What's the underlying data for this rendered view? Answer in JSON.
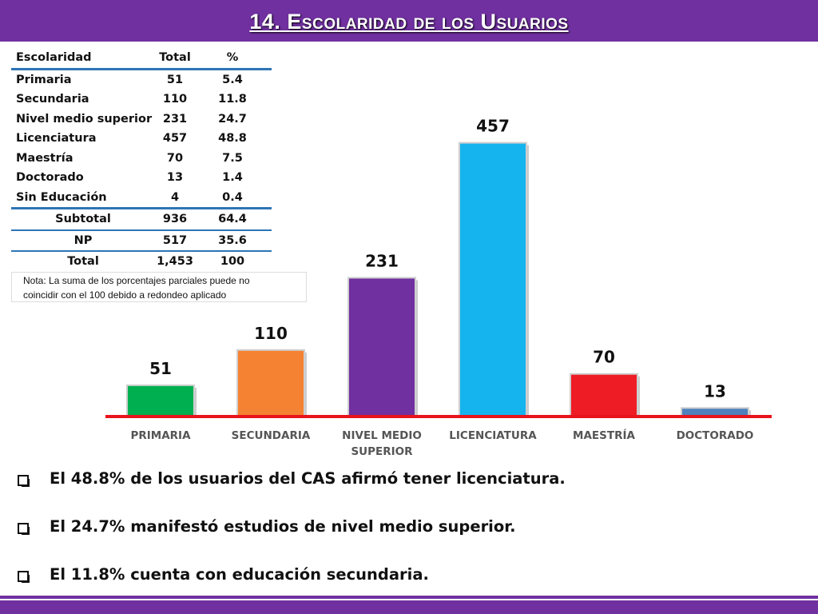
{
  "title": "14. Escolaridad de los Usuarios",
  "table": {
    "headers": [
      "Escolaridad",
      "Total",
      "%"
    ],
    "rows": [
      [
        "Primaria",
        "51",
        "5.4"
      ],
      [
        "Secundaria",
        "110",
        "11.8"
      ],
      [
        "Nivel medio superior",
        "231",
        "24.7"
      ],
      [
        "Licenciatura",
        "457",
        "48.8"
      ],
      [
        "Maestría",
        "70",
        "7.5"
      ],
      [
        "Doctorado",
        "13",
        "1.4"
      ],
      [
        "Sin Educación",
        "4",
        "0.4"
      ]
    ],
    "subtotal": [
      "Subtotal",
      "936",
      "64.4"
    ],
    "np": [
      "NP",
      "517",
      "35.6"
    ],
    "total": [
      "Total",
      "1,453",
      "100"
    ]
  },
  "note": {
    "line1": "Nota: La suma de los porcentajes parciales puede no",
    "line2": "coincidir con el 100 debido a redondeo aplicado"
  },
  "chart_data": {
    "type": "bar",
    "categories": [
      "PRIMARIA",
      "SECUNDARIA",
      "NIVEL MEDIO SUPERIOR",
      "LICENCIATURA",
      "MAESTRÍA",
      "DOCTORADO"
    ],
    "category_lines": [
      [
        "PRIMARIA"
      ],
      [
        "SECUNDARIA"
      ],
      [
        "NIVEL MEDIO",
        "SUPERIOR"
      ],
      [
        "LICENCIATURA"
      ],
      [
        "MAESTRÍA"
      ],
      [
        "DOCTORADO"
      ]
    ],
    "values": [
      51,
      110,
      231,
      457,
      70,
      13
    ],
    "data_labels": [
      "51",
      "110",
      "231",
      "457",
      "70",
      "13"
    ],
    "colors": [
      "#00b050",
      "#f58232",
      "#7030a0",
      "#16b4ee",
      "#ee1c25",
      "#4f81bd"
    ],
    "baseline_color": "#e8141c",
    "grid": false,
    "legend": "none"
  },
  "bullets": [
    "El 48.8% de los usuarios del CAS afirmó tener licenciatura.",
    "El 24.7% manifestó estudios de nivel medio superior.",
    "El 11.8% cuenta con educación secundaria."
  ]
}
